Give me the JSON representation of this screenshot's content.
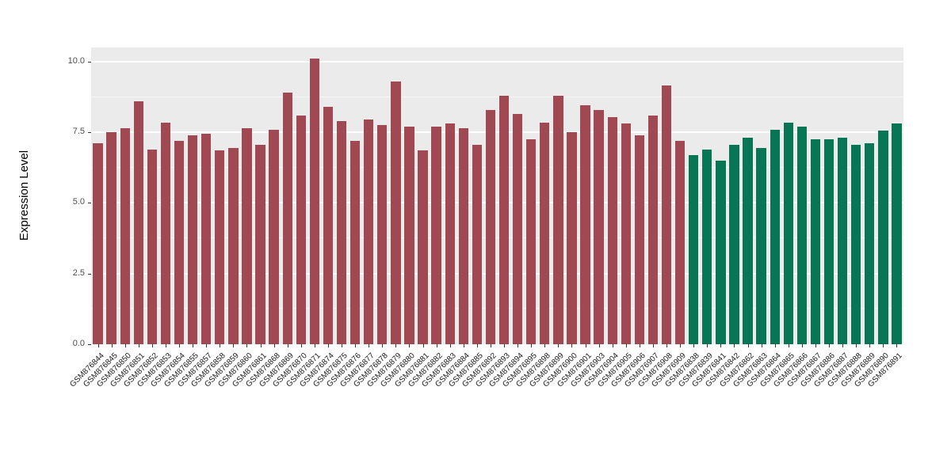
{
  "chart_data": {
    "type": "bar",
    "title": "",
    "xlabel": "",
    "ylabel": "Expression Level",
    "ylim": [
      0,
      10.5
    ],
    "yticks": [
      0,
      2.5,
      5,
      7.5,
      10
    ],
    "ytick_labels": [
      "0.0",
      "2.5",
      "5.0",
      "7.5",
      "10.0"
    ],
    "minor_ticks": [
      1.25,
      3.75,
      6.25,
      8.75
    ],
    "grid": "on",
    "legend_position": "none",
    "panel_background_color": "#EBEBEB",
    "group_colors": {
      "groupA": "#A04952",
      "groupB": "#087554"
    },
    "samples": [
      {
        "label": "GSM876844",
        "value": 7.1,
        "group": "groupA"
      },
      {
        "label": "GSM876845",
        "value": 7.5,
        "group": "groupA"
      },
      {
        "label": "GSM876850",
        "value": 7.65,
        "group": "groupA"
      },
      {
        "label": "GSM876851",
        "value": 8.6,
        "group": "groupA"
      },
      {
        "label": "GSM876852",
        "value": 6.9,
        "group": "groupA"
      },
      {
        "label": "GSM876853",
        "value": 7.85,
        "group": "groupA"
      },
      {
        "label": "GSM876854",
        "value": 7.2,
        "group": "groupA"
      },
      {
        "label": "GSM876855",
        "value": 7.4,
        "group": "groupA"
      },
      {
        "label": "GSM876857",
        "value": 7.45,
        "group": "groupA"
      },
      {
        "label": "GSM876858",
        "value": 6.85,
        "group": "groupA"
      },
      {
        "label": "GSM876859",
        "value": 6.95,
        "group": "groupA"
      },
      {
        "label": "GSM876860",
        "value": 7.65,
        "group": "groupA"
      },
      {
        "label": "GSM876861",
        "value": 7.05,
        "group": "groupA"
      },
      {
        "label": "GSM876868",
        "value": 7.6,
        "group": "groupA"
      },
      {
        "label": "GSM876869",
        "value": 8.9,
        "group": "groupA"
      },
      {
        "label": "GSM876870",
        "value": 8.1,
        "group": "groupA"
      },
      {
        "label": "GSM876871",
        "value": 10.1,
        "group": "groupA"
      },
      {
        "label": "GSM876874",
        "value": 8.4,
        "group": "groupA"
      },
      {
        "label": "GSM876875",
        "value": 7.9,
        "group": "groupA"
      },
      {
        "label": "GSM876876",
        "value": 7.2,
        "group": "groupA"
      },
      {
        "label": "GSM876877",
        "value": 7.95,
        "group": "groupA"
      },
      {
        "label": "GSM876878",
        "value": 7.75,
        "group": "groupA"
      },
      {
        "label": "GSM876879",
        "value": 9.3,
        "group": "groupA"
      },
      {
        "label": "GSM876880",
        "value": 7.7,
        "group": "groupA"
      },
      {
        "label": "GSM876881",
        "value": 6.85,
        "group": "groupA"
      },
      {
        "label": "GSM876882",
        "value": 7.7,
        "group": "groupA"
      },
      {
        "label": "GSM876883",
        "value": 7.8,
        "group": "groupA"
      },
      {
        "label": "GSM876884",
        "value": 7.65,
        "group": "groupA"
      },
      {
        "label": "GSM876885",
        "value": 7.05,
        "group": "groupA"
      },
      {
        "label": "GSM876892",
        "value": 8.3,
        "group": "groupA"
      },
      {
        "label": "GSM876893",
        "value": 8.8,
        "group": "groupA"
      },
      {
        "label": "GSM876894",
        "value": 8.15,
        "group": "groupA"
      },
      {
        "label": "GSM876895",
        "value": 7.25,
        "group": "groupA"
      },
      {
        "label": "GSM876898",
        "value": 7.85,
        "group": "groupA"
      },
      {
        "label": "GSM876899",
        "value": 8.8,
        "group": "groupA"
      },
      {
        "label": "GSM876900",
        "value": 7.5,
        "group": "groupA"
      },
      {
        "label": "GSM876901",
        "value": 8.45,
        "group": "groupA"
      },
      {
        "label": "GSM876903",
        "value": 8.3,
        "group": "groupA"
      },
      {
        "label": "GSM876904",
        "value": 8.05,
        "group": "groupA"
      },
      {
        "label": "GSM876905",
        "value": 7.8,
        "group": "groupA"
      },
      {
        "label": "GSM876906",
        "value": 7.4,
        "group": "groupA"
      },
      {
        "label": "GSM876907",
        "value": 8.1,
        "group": "groupA"
      },
      {
        "label": "GSM876908",
        "value": 9.15,
        "group": "groupA"
      },
      {
        "label": "GSM876909",
        "value": 7.2,
        "group": "groupA"
      },
      {
        "label": "GSM876838",
        "value": 6.7,
        "group": "groupB"
      },
      {
        "label": "GSM876839",
        "value": 6.9,
        "group": "groupB"
      },
      {
        "label": "GSM876841",
        "value": 6.5,
        "group": "groupB"
      },
      {
        "label": "GSM876842",
        "value": 7.05,
        "group": "groupB"
      },
      {
        "label": "GSM876862",
        "value": 7.3,
        "group": "groupB"
      },
      {
        "label": "GSM876863",
        "value": 6.95,
        "group": "groupB"
      },
      {
        "label": "GSM876864",
        "value": 7.6,
        "group": "groupB"
      },
      {
        "label": "GSM876865",
        "value": 7.85,
        "group": "groupB"
      },
      {
        "label": "GSM876866",
        "value": 7.7,
        "group": "groupB"
      },
      {
        "label": "GSM876867",
        "value": 7.25,
        "group": "groupB"
      },
      {
        "label": "GSM876886",
        "value": 7.25,
        "group": "groupB"
      },
      {
        "label": "GSM876887",
        "value": 7.3,
        "group": "groupB"
      },
      {
        "label": "GSM876888",
        "value": 7.05,
        "group": "groupB"
      },
      {
        "label": "GSM876889",
        "value": 7.1,
        "group": "groupB"
      },
      {
        "label": "GSM876890",
        "value": 7.55,
        "group": "groupB"
      },
      {
        "label": "GSM876891",
        "value": 7.8,
        "group": "groupB"
      }
    ]
  }
}
